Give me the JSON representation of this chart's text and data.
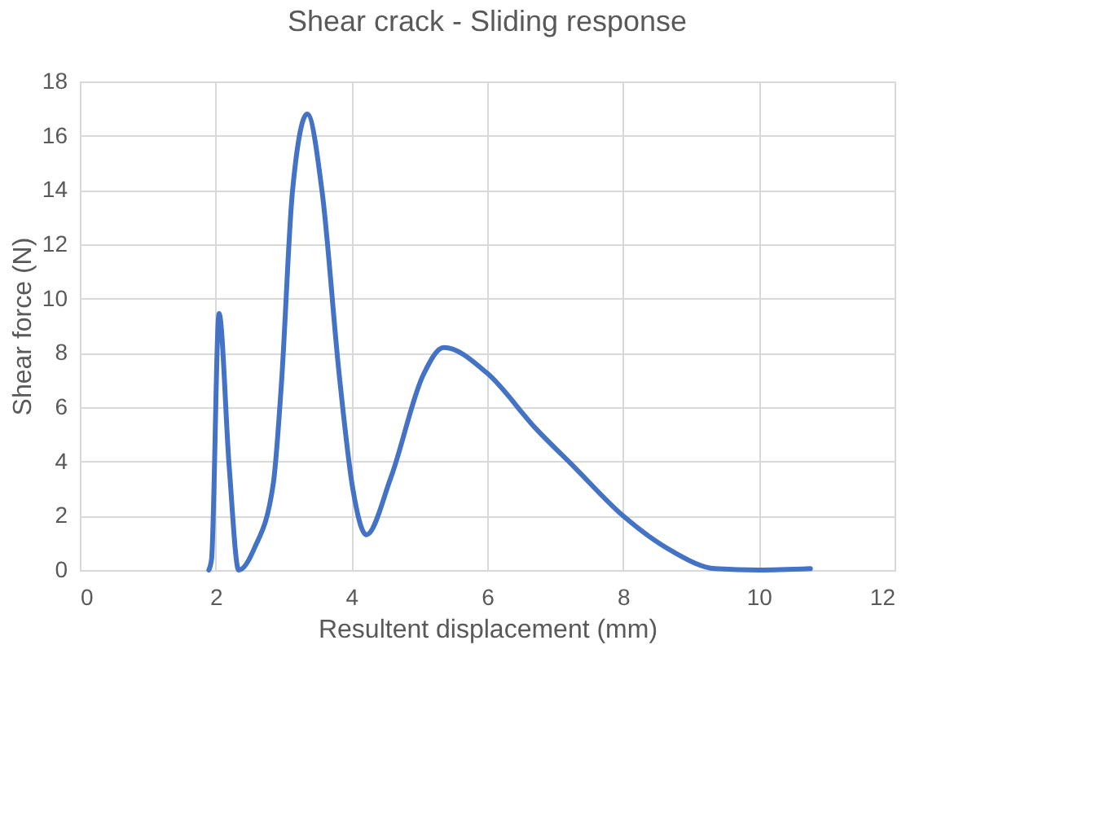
{
  "chart_data": {
    "type": "line",
    "title": "Shear crack - Sliding response",
    "xlabel": "Resultent displacement (mm)",
    "ylabel": "Shear force (N)",
    "x": [
      1.9,
      1.94,
      2.05,
      2.2,
      2.34,
      2.57,
      2.85,
      2.97,
      3.13,
      3.35,
      3.57,
      3.82,
      4.02,
      4.22,
      4.58,
      5.06,
      5.36,
      6.0,
      6.72,
      7.28,
      8.0,
      8.72,
      9.36,
      10.0,
      10.76
    ],
    "series": [
      {
        "color": "#4472c4",
        "values": [
          0,
          0.4,
          9.45,
          3.8,
          0,
          0.8,
          3.2,
          6.9,
          13.9,
          16.8,
          13.9,
          7.2,
          3.0,
          1.3,
          3.4,
          7.2,
          8.2,
          7.25,
          5.2,
          3.8,
          2.0,
          0.7,
          0.05,
          0,
          0.05
        ]
      }
    ],
    "xlim": [
      0,
      12
    ],
    "xticks": [
      0,
      2,
      4,
      6,
      8,
      10,
      12
    ],
    "ylim": [
      0,
      18
    ],
    "yticks": [
      0,
      2,
      4,
      6,
      8,
      10,
      12,
      14,
      16,
      18
    ],
    "grid": true,
    "marker": "none",
    "line_style": "solid"
  }
}
